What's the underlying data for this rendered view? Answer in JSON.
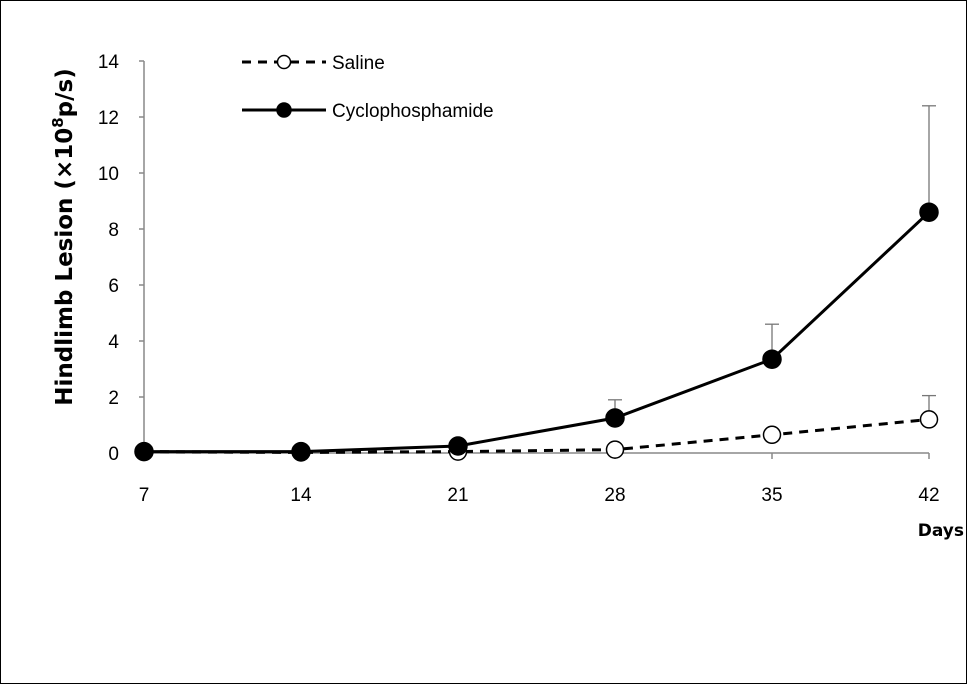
{
  "chart_data": {
    "type": "line",
    "title": "",
    "xlabel": "Days",
    "ylabel_main": "Hindlimb Lesion (×10",
    "ylabel_sup": "8",
    "ylabel_tail": "p/s)",
    "x": [
      7,
      14,
      21,
      28,
      35,
      42
    ],
    "x_ticks": [
      "7",
      "14",
      "21",
      "28",
      "35",
      "42"
    ],
    "ylim": [
      0,
      14
    ],
    "y_ticks": [
      "0",
      "2",
      "4",
      "6",
      "8",
      "10",
      "12",
      "14"
    ],
    "grid": false,
    "legend_position": "top-left",
    "series": [
      {
        "name": "Saline",
        "values": [
          0.05,
          0.02,
          0.05,
          0.12,
          0.65,
          1.2
        ],
        "error_upper": [
          0,
          0,
          0,
          0,
          0,
          2.05
        ],
        "line_style": "dashed",
        "marker": "open-circle",
        "color": "#000000"
      },
      {
        "name": "Cyclophosphamide",
        "values": [
          0.05,
          0.05,
          0.25,
          1.25,
          3.35,
          8.6
        ],
        "error_upper": [
          0,
          0,
          0,
          1.9,
          4.6,
          12.4
        ],
        "line_style": "solid",
        "marker": "filled-circle",
        "color": "#000000"
      }
    ]
  }
}
